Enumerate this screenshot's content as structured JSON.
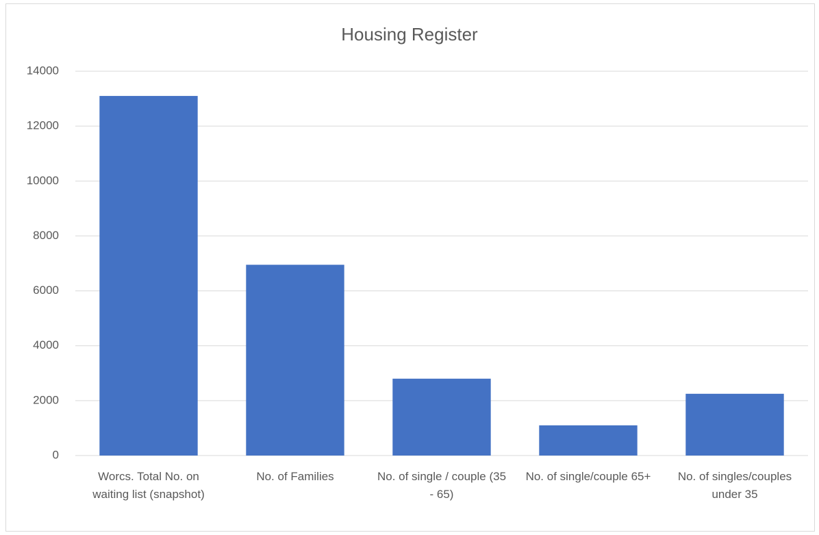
{
  "chart_data": {
    "type": "bar",
    "title": "Housing Register",
    "categories": [
      "Worcs. Total No. on waiting list (snapshot)",
      "No. of Families",
      "No. of single / couple (35 - 65)",
      "No. of single/couple 65+",
      "No. of singles/couples under 35"
    ],
    "values": [
      13100,
      6950,
      2800,
      1100,
      2250
    ],
    "color": "#4472c4",
    "ylim": [
      0,
      14000
    ],
    "yticks": [
      0,
      2000,
      4000,
      6000,
      8000,
      10000,
      12000,
      14000
    ],
    "grid": true
  }
}
